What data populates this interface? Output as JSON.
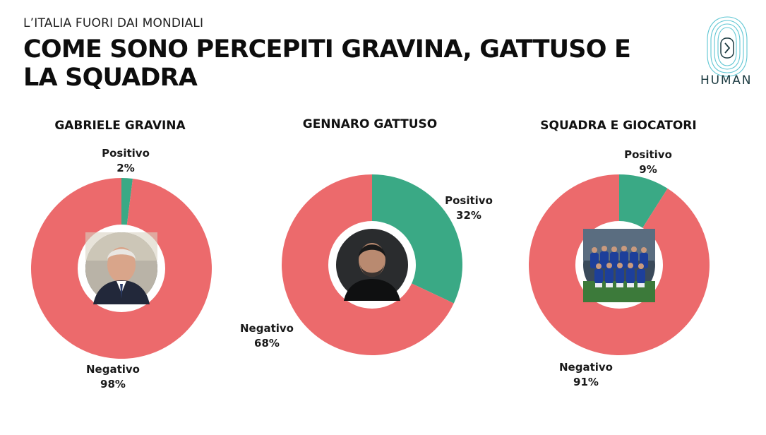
{
  "kicker": "L’ITALIA FUORI DAI MONDIALI",
  "title": "COME SONO PERCEPITI GRAVINA, GATTUSO E LA SQUADRA",
  "logo_text": "HUMAN",
  "colors": {
    "positive": "#3aa985",
    "negative": "#ec6a6c"
  },
  "chart_data": [
    {
      "type": "pie",
      "title": "GABRIELE GRAVINA",
      "categories": [
        "Positivo",
        "Negativo"
      ],
      "values": [
        2,
        98
      ],
      "value_labels": [
        "2%",
        "98%"
      ],
      "center_image": "photo-of-gabriele-gravina"
    },
    {
      "type": "pie",
      "title": "GENNARO GATTUSO",
      "categories": [
        "Positivo",
        "Negativo"
      ],
      "values": [
        32,
        68
      ],
      "value_labels": [
        "32%",
        "68%"
      ],
      "center_image": "photo-of-gennaro-gattuso"
    },
    {
      "type": "pie",
      "title": "SQUADRA E GIOCATORI",
      "categories": [
        "Positivo",
        "Negativo"
      ],
      "values": [
        9,
        91
      ],
      "value_labels": [
        "9%",
        "91%"
      ],
      "center_image": "photo-of-italy-team"
    }
  ]
}
